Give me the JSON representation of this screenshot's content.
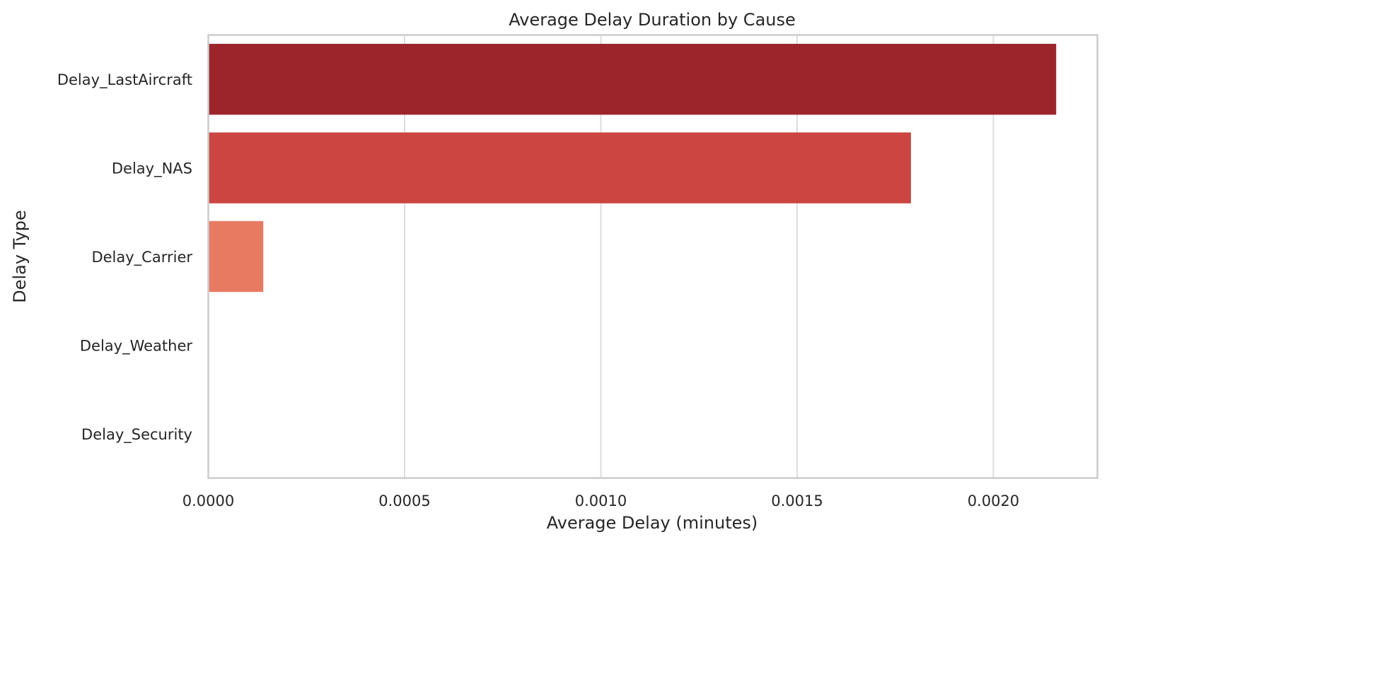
{
  "chart_data": {
    "type": "bar",
    "orientation": "horizontal",
    "title": "Average Delay Duration by Cause",
    "xlabel": "Average Delay (minutes)",
    "ylabel": "Delay Type",
    "categories": [
      "Delay_LastAircraft",
      "Delay_NAS",
      "Delay_Carrier",
      "Delay_Weather",
      "Delay_Security"
    ],
    "values": [
      0.00216,
      0.00179,
      0.00014,
      0.0,
      0.0
    ],
    "bar_colors": [
      "#9c252b",
      "#cb4641",
      "#e97a62",
      "#f6b69e",
      "#fde0d2"
    ],
    "xlim": [
      0,
      0.002265
    ],
    "xticks": [
      0.0,
      0.0005,
      0.001,
      0.0015,
      0.002
    ],
    "xtick_labels": [
      "0.0000",
      "0.0005",
      "0.0010",
      "0.0015",
      "0.0020"
    ],
    "grid": true,
    "grid_axis": "x",
    "legend": "none"
  }
}
